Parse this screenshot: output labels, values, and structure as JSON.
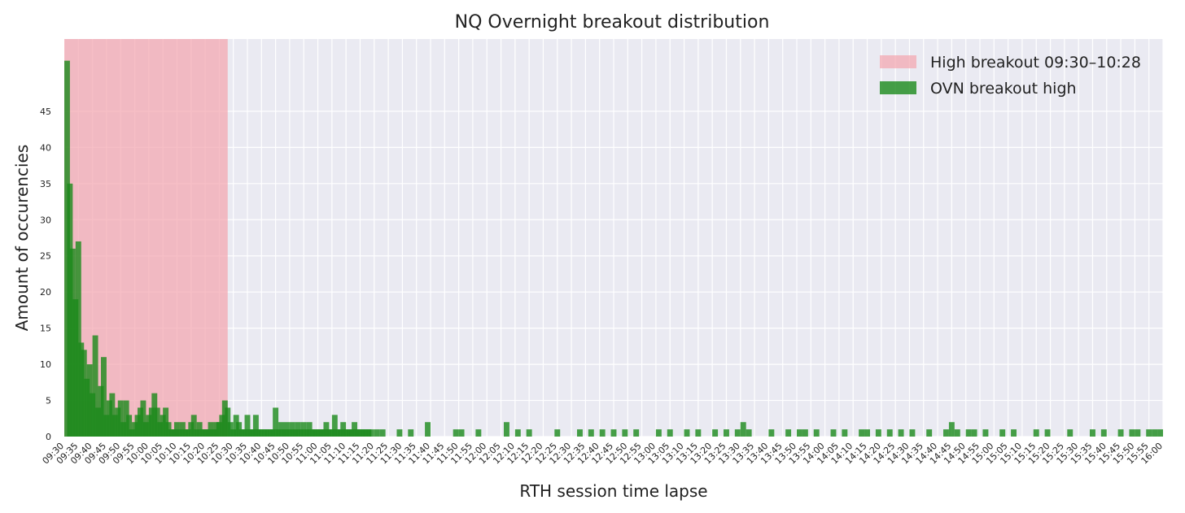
{
  "chart_data": {
    "type": "bar",
    "title": "NQ Overnight breakout distribution",
    "xlabel": "RTH session time lapse",
    "ylabel": "Amount of occurencies",
    "x_range": [
      "09:30",
      "16:00"
    ],
    "bin_minutes": 2,
    "ylim": [
      0,
      55
    ],
    "yticks": [
      0,
      5,
      10,
      15,
      20,
      25,
      30,
      35,
      40,
      45
    ],
    "xticks": [
      "09:30",
      "09:35",
      "09:40",
      "09:45",
      "09:50",
      "09:55",
      "10:00",
      "10:05",
      "10:10",
      "10:15",
      "10:20",
      "10:25",
      "10:30",
      "10:35",
      "10:40",
      "10:45",
      "10:50",
      "10:55",
      "11:00",
      "11:05",
      "11:10",
      "11:15",
      "11:20",
      "11:25",
      "11:30",
      "11:35",
      "11:40",
      "11:45",
      "11:50",
      "11:55",
      "12:00",
      "12:05",
      "12:10",
      "12:15",
      "12:20",
      "12:25",
      "12:30",
      "12:35",
      "12:40",
      "12:45",
      "12:50",
      "12:55",
      "13:00",
      "13:05",
      "13:10",
      "13:15",
      "13:20",
      "13:25",
      "13:30",
      "13:35",
      "13:40",
      "13:45",
      "13:50",
      "13:55",
      "14:00",
      "14:05",
      "14:10",
      "14:15",
      "14:20",
      "14:25",
      "14:30",
      "14:35",
      "14:40",
      "14:45",
      "14:50",
      "14:55",
      "15:00",
      "15:05",
      "15:10",
      "15:15",
      "15:20",
      "15:25",
      "15:30",
      "15:35",
      "15:40",
      "15:45",
      "15:50",
      "15:55",
      "16:00"
    ],
    "grid": true,
    "legend_position": "top-right",
    "shaded_region": {
      "label": "High breakout 09:30–10:28",
      "start": "09:30",
      "end": "10:28",
      "color": "#f4a4ae"
    },
    "series": [
      {
        "name": "OVN breakout high",
        "color": "#1a8a1a",
        "bars": [
          {
            "x": "09:30",
            "y": 52
          },
          {
            "x": "09:31",
            "y": 35
          },
          {
            "x": "09:32",
            "y": 26
          },
          {
            "x": "09:33",
            "y": 19
          },
          {
            "x": "09:34",
            "y": 27
          },
          {
            "x": "09:35",
            "y": 13
          },
          {
            "x": "09:36",
            "y": 12
          },
          {
            "x": "09:37",
            "y": 8
          },
          {
            "x": "09:38",
            "y": 10
          },
          {
            "x": "09:39",
            "y": 6
          },
          {
            "x": "09:40",
            "y": 14
          },
          {
            "x": "09:41",
            "y": 4
          },
          {
            "x": "09:42",
            "y": 7
          },
          {
            "x": "09:43",
            "y": 11
          },
          {
            "x": "09:44",
            "y": 3
          },
          {
            "x": "09:45",
            "y": 5
          },
          {
            "x": "09:46",
            "y": 6
          },
          {
            "x": "09:47",
            "y": 3
          },
          {
            "x": "09:48",
            "y": 4
          },
          {
            "x": "09:49",
            "y": 5
          },
          {
            "x": "09:50",
            "y": 2
          },
          {
            "x": "09:51",
            "y": 5
          },
          {
            "x": "09:52",
            "y": 3
          },
          {
            "x": "09:53",
            "y": 1
          },
          {
            "x": "09:54",
            "y": 2
          },
          {
            "x": "09:55",
            "y": 3
          },
          {
            "x": "09:56",
            "y": 4
          },
          {
            "x": "09:57",
            "y": 5
          },
          {
            "x": "09:58",
            "y": 2
          },
          {
            "x": "09:59",
            "y": 3
          },
          {
            "x": "10:00",
            "y": 4
          },
          {
            "x": "10:01",
            "y": 6
          },
          {
            "x": "10:02",
            "y": 4
          },
          {
            "x": "10:03",
            "y": 2
          },
          {
            "x": "10:04",
            "y": 3
          },
          {
            "x": "10:05",
            "y": 4
          },
          {
            "x": "10:06",
            "y": 2
          },
          {
            "x": "10:07",
            "y": 1
          },
          {
            "x": "10:08",
            "y": 1
          },
          {
            "x": "10:09",
            "y": 2
          },
          {
            "x": "10:10",
            "y": 1
          },
          {
            "x": "10:11",
            "y": 2
          },
          {
            "x": "10:12",
            "y": 1
          },
          {
            "x": "10:13",
            "y": 1
          },
          {
            "x": "10:14",
            "y": 2
          },
          {
            "x": "10:15",
            "y": 3
          },
          {
            "x": "10:16",
            "y": 1
          },
          {
            "x": "10:17",
            "y": 2
          },
          {
            "x": "10:18",
            "y": 1
          },
          {
            "x": "10:19",
            "y": 1
          },
          {
            "x": "10:20",
            "y": 1
          },
          {
            "x": "10:21",
            "y": 2
          },
          {
            "x": "10:22",
            "y": 1
          },
          {
            "x": "10:23",
            "y": 2
          },
          {
            "x": "10:24",
            "y": 2
          },
          {
            "x": "10:25",
            "y": 3
          },
          {
            "x": "10:26",
            "y": 5
          },
          {
            "x": "10:27",
            "y": 4
          },
          {
            "x": "10:28",
            "y": 2
          },
          {
            "x": "10:29",
            "y": 1
          },
          {
            "x": "10:30",
            "y": 3
          },
          {
            "x": "10:31",
            "y": 2
          },
          {
            "x": "10:32",
            "y": 1
          },
          {
            "x": "10:33",
            "y": 1
          },
          {
            "x": "10:34",
            "y": 3
          },
          {
            "x": "10:35",
            "y": 1
          },
          {
            "x": "10:36",
            "y": 1
          },
          {
            "x": "10:37",
            "y": 3
          },
          {
            "x": "10:38",
            "y": 1
          },
          {
            "x": "10:39",
            "y": 1
          },
          {
            "x": "10:40",
            "y": 1
          },
          {
            "x": "10:41",
            "y": 1
          },
          {
            "x": "10:42",
            "y": 1
          },
          {
            "x": "10:43",
            "y": 1
          },
          {
            "x": "10:44",
            "y": 4
          },
          {
            "x": "10:45",
            "y": 1
          },
          {
            "x": "10:46",
            "y": 2
          },
          {
            "x": "10:47",
            "y": 1
          },
          {
            "x": "10:48",
            "y": 2
          },
          {
            "x": "10:49",
            "y": 1
          },
          {
            "x": "10:50",
            "y": 2
          },
          {
            "x": "10:51",
            "y": 1
          },
          {
            "x": "10:52",
            "y": 2
          },
          {
            "x": "10:53",
            "y": 1
          },
          {
            "x": "10:54",
            "y": 2
          },
          {
            "x": "10:55",
            "y": 1
          },
          {
            "x": "10:56",
            "y": 2
          },
          {
            "x": "10:57",
            "y": 1
          },
          {
            "x": "10:58",
            "y": 1
          },
          {
            "x": "10:59",
            "y": 1
          },
          {
            "x": "11:00",
            "y": 1
          },
          {
            "x": "11:01",
            "y": 1
          },
          {
            "x": "11:02",
            "y": 2
          },
          {
            "x": "11:03",
            "y": 1
          },
          {
            "x": "11:04",
            "y": 1
          },
          {
            "x": "11:05",
            "y": 3
          },
          {
            "x": "11:06",
            "y": 1
          },
          {
            "x": "11:07",
            "y": 1
          },
          {
            "x": "11:08",
            "y": 2
          },
          {
            "x": "11:09",
            "y": 1
          },
          {
            "x": "11:10",
            "y": 1
          },
          {
            "x": "11:11",
            "y": 1
          },
          {
            "x": "11:12",
            "y": 2
          },
          {
            "x": "11:13",
            "y": 1
          },
          {
            "x": "11:14",
            "y": 1
          },
          {
            "x": "11:15",
            "y": 1
          },
          {
            "x": "11:16",
            "y": 1
          },
          {
            "x": "11:17",
            "y": 1
          },
          {
            "x": "11:18",
            "y": 1
          },
          {
            "x": "11:20",
            "y": 1
          },
          {
            "x": "11:22",
            "y": 1
          },
          {
            "x": "11:28",
            "y": 1
          },
          {
            "x": "11:32",
            "y": 1
          },
          {
            "x": "11:38",
            "y": 2
          },
          {
            "x": "11:48",
            "y": 1
          },
          {
            "x": "11:50",
            "y": 1
          },
          {
            "x": "11:56",
            "y": 1
          },
          {
            "x": "12:06",
            "y": 2
          },
          {
            "x": "12:10",
            "y": 1
          },
          {
            "x": "12:14",
            "y": 1
          },
          {
            "x": "12:24",
            "y": 1
          },
          {
            "x": "12:32",
            "y": 1
          },
          {
            "x": "12:36",
            "y": 1
          },
          {
            "x": "12:40",
            "y": 1
          },
          {
            "x": "12:44",
            "y": 1
          },
          {
            "x": "12:48",
            "y": 1
          },
          {
            "x": "12:52",
            "y": 1
          },
          {
            "x": "13:00",
            "y": 1
          },
          {
            "x": "13:04",
            "y": 1
          },
          {
            "x": "13:10",
            "y": 1
          },
          {
            "x": "13:14",
            "y": 1
          },
          {
            "x": "13:20",
            "y": 1
          },
          {
            "x": "13:24",
            "y": 1
          },
          {
            "x": "13:28",
            "y": 1
          },
          {
            "x": "13:30",
            "y": 2
          },
          {
            "x": "13:32",
            "y": 1
          },
          {
            "x": "13:40",
            "y": 1
          },
          {
            "x": "13:46",
            "y": 1
          },
          {
            "x": "13:50",
            "y": 1
          },
          {
            "x": "13:52",
            "y": 1
          },
          {
            "x": "13:56",
            "y": 1
          },
          {
            "x": "14:02",
            "y": 1
          },
          {
            "x": "14:06",
            "y": 1
          },
          {
            "x": "14:12",
            "y": 1
          },
          {
            "x": "14:14",
            "y": 1
          },
          {
            "x": "14:18",
            "y": 1
          },
          {
            "x": "14:22",
            "y": 1
          },
          {
            "x": "14:26",
            "y": 1
          },
          {
            "x": "14:30",
            "y": 1
          },
          {
            "x": "14:36",
            "y": 1
          },
          {
            "x": "14:42",
            "y": 1
          },
          {
            "x": "14:44",
            "y": 2
          },
          {
            "x": "14:46",
            "y": 1
          },
          {
            "x": "14:50",
            "y": 1
          },
          {
            "x": "14:52",
            "y": 1
          },
          {
            "x": "14:56",
            "y": 1
          },
          {
            "x": "15:02",
            "y": 1
          },
          {
            "x": "15:06",
            "y": 1
          },
          {
            "x": "15:14",
            "y": 1
          },
          {
            "x": "15:18",
            "y": 1
          },
          {
            "x": "15:26",
            "y": 1
          },
          {
            "x": "15:34",
            "y": 1
          },
          {
            "x": "15:38",
            "y": 1
          },
          {
            "x": "15:44",
            "y": 1
          },
          {
            "x": "15:48",
            "y": 1
          },
          {
            "x": "15:50",
            "y": 1
          },
          {
            "x": "15:54",
            "y": 1
          },
          {
            "x": "15:56",
            "y": 1
          },
          {
            "x": "15:58",
            "y": 1
          }
        ]
      }
    ]
  }
}
